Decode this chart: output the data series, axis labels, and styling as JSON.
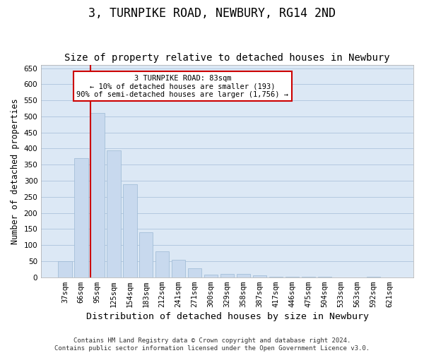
{
  "title": "3, TURNPIKE ROAD, NEWBURY, RG14 2ND",
  "subtitle": "Size of property relative to detached houses in Newbury",
  "xlabel": "Distribution of detached houses by size in Newbury",
  "ylabel": "Number of detached properties",
  "categories": [
    "37sqm",
    "66sqm",
    "95sqm",
    "125sqm",
    "154sqm",
    "183sqm",
    "212sqm",
    "241sqm",
    "271sqm",
    "300sqm",
    "329sqm",
    "358sqm",
    "387sqm",
    "417sqm",
    "446sqm",
    "475sqm",
    "504sqm",
    "533sqm",
    "563sqm",
    "592sqm",
    "621sqm"
  ],
  "values": [
    50,
    370,
    510,
    395,
    290,
    140,
    80,
    55,
    28,
    8,
    10,
    10,
    5,
    1,
    1,
    1,
    1,
    0,
    0,
    1,
    0
  ],
  "bar_color": "#c8d9ee",
  "bar_edge_color": "#9bb8d4",
  "annotation_box_text": "3 TURNPIKE ROAD: 83sqm\n← 10% of detached houses are smaller (193)\n90% of semi-detached houses are larger (1,756) →",
  "annotation_box_facecolor": "#ffffff",
  "annotation_box_edgecolor": "#cc0000",
  "annotation_line_color": "#cc0000",
  "vline_x": 1.57,
  "ylim": [
    0,
    660
  ],
  "yticks": [
    0,
    50,
    100,
    150,
    200,
    250,
    300,
    350,
    400,
    450,
    500,
    550,
    600,
    650
  ],
  "grid_color": "#adc4dc",
  "plot_bg_color": "#dce8f5",
  "fig_bg_color": "#ffffff",
  "footer_line1": "Contains HM Land Registry data © Crown copyright and database right 2024.",
  "footer_line2": "Contains public sector information licensed under the Open Government Licence v3.0.",
  "title_fontsize": 12,
  "subtitle_fontsize": 10,
  "xlabel_fontsize": 9.5,
  "ylabel_fontsize": 8.5,
  "tick_fontsize": 7.5,
  "footer_fontsize": 6.5,
  "annotation_fontsize": 7.5
}
